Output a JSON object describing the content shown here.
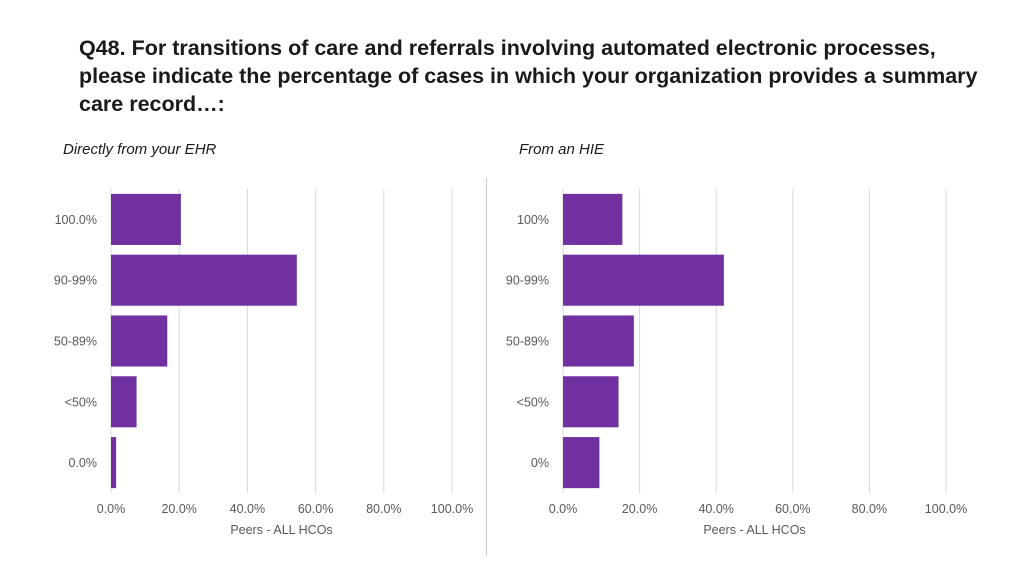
{
  "title": "Q48. For transitions of care and referrals involving automated electronic processes, please indicate the percentage of cases in which your organization provides a summary care record…:",
  "chart_data": [
    {
      "type": "bar",
      "orientation": "horizontal",
      "title": "Directly from your EHR",
      "categories": [
        "100.0%",
        "90-99%",
        "50-89%",
        "<50%",
        "0.0%"
      ],
      "values": [
        20.5,
        54.5,
        16.5,
        7.5,
        1.5
      ],
      "xlabel": "Peers - ALL HCOs",
      "xlim": [
        0,
        100
      ],
      "xticks": [
        "0.0%",
        "20.0%",
        "40.0%",
        "60.0%",
        "80.0%",
        "100.0%"
      ],
      "grid": true,
      "bar_color": "#7030a0"
    },
    {
      "type": "bar",
      "orientation": "horizontal",
      "title": "From an HIE",
      "categories": [
        "100%",
        "90-99%",
        "50-89%",
        "<50%",
        "0%"
      ],
      "values": [
        15.5,
        42,
        18.5,
        14.5,
        9.5
      ],
      "xlabel": "Peers - ALL HCOs",
      "xlim": [
        0,
        100
      ],
      "xticks": [
        "0.0%",
        "20.0%",
        "40.0%",
        "60.0%",
        "80.0%",
        "100.0%"
      ],
      "grid": true,
      "bar_color": "#7030a0"
    }
  ]
}
